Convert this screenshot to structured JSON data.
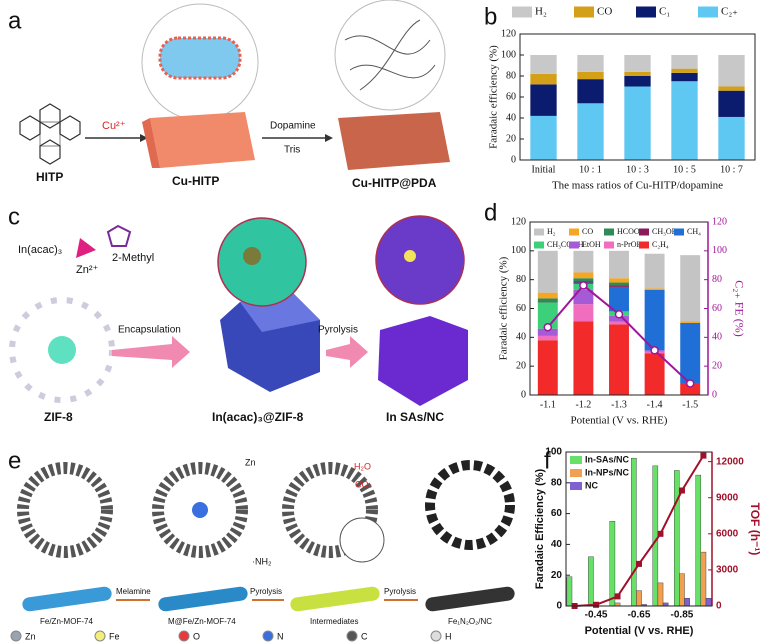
{
  "panel_labels": [
    "a",
    "b",
    "c",
    "d",
    "e",
    "f"
  ],
  "diagram_a": {
    "hitp": "HITP",
    "cu_ion": "Cu²⁺",
    "cu_hitp": "Cu-HITP",
    "dopamine": "Dopamine",
    "tris": "Tris",
    "cu_hitp_pda": "Cu-HITP@PDA"
  },
  "diagram_c": {
    "in_acac": "In(acac)₃",
    "zn_ion": "Zn²⁺",
    "methyl": "2-Methyl",
    "zif8": "ZIF-8",
    "encapsulation": "Encapsulation",
    "pyrolysis": "Pyrolysis",
    "in_zif8": "In(acac)₃@ZIF-8",
    "in_sas": "In SAs/NC"
  },
  "diagram_e": {
    "zn": "Zn",
    "h2o": "H₂O",
    "co2": "COₓ",
    "nh3": "·NH₂",
    "melamine": "Melamine",
    "pyrolysis1": "Pyrolysis",
    "pyrolysis2": "Pyrolysis",
    "mof": "Fe/Zn-MOF-74",
    "m_mof": "M@Fe/Zn-MOF-74",
    "intermediates": "Intermediates",
    "product": "Fe₁N₂O₂/NC",
    "atoms": [
      {
        "label": "Zn",
        "color": "#9aa3b0"
      },
      {
        "label": "Fe",
        "color": "#f3ef7a"
      },
      {
        "label": "O",
        "color": "#e83a3a"
      },
      {
        "label": "N",
        "color": "#3a6fe0"
      },
      {
        "label": "C",
        "color": "#555555"
      },
      {
        "label": "H",
        "color": "#dddddd"
      }
    ]
  },
  "chart_data": [
    {
      "type": "bar",
      "stacked": true,
      "categories": [
        "Initial",
        "10 : 1",
        "10 : 3",
        "10 : 5",
        "10 : 7"
      ],
      "series": [
        {
          "name": "H₂",
          "color": "#c8c8c8",
          "values": [
            18,
            16,
            16,
            13,
            30
          ]
        },
        {
          "name": "CO",
          "color": "#d4a017",
          "values": [
            10,
            7,
            4,
            4,
            4
          ]
        },
        {
          "name": "C₁",
          "color": "#0b1b6e",
          "values": [
            30,
            23,
            10,
            8,
            25
          ]
        },
        {
          "name": "C₂₊",
          "color": "#5ec8f2",
          "values": [
            42,
            54,
            70,
            75,
            41
          ]
        }
      ],
      "ylim": [
        0,
        120
      ],
      "yticks": [
        0,
        20,
        40,
        60,
        80,
        100,
        120
      ],
      "y_label": "Faradaic efficiency (%)",
      "x_label": "The mass ratios of Cu-HITP/dopamine",
      "legend": "top"
    },
    {
      "type": "bar",
      "stacked": true,
      "categories": [
        "-1.1",
        "-1.2",
        "-1.3",
        "-1.4",
        "-1.5"
      ],
      "series": [
        {
          "name": "H₂",
          "color": "#c4c4c4",
          "values": [
            29,
            15,
            19,
            24,
            46
          ]
        },
        {
          "name": "CO",
          "color": "#f5a623",
          "values": [
            4,
            4,
            3,
            1,
            1
          ]
        },
        {
          "name": "HCOOH",
          "color": "#2e8b57",
          "values": [
            3,
            2,
            2,
            0,
            0
          ]
        },
        {
          "name": "CH₃OH",
          "color": "#8b1a5a",
          "values": [
            0,
            1,
            1,
            0,
            0
          ]
        },
        {
          "name": "CH₄",
          "color": "#1f6fd6",
          "values": [
            0,
            1,
            17,
            42,
            42
          ]
        },
        {
          "name": "CH₃COOH",
          "color": "#3cd07a",
          "values": [
            18,
            4,
            3,
            0,
            0
          ]
        },
        {
          "name": "EtOH",
          "color": "#a75ad6",
          "values": [
            5,
            10,
            4,
            1,
            0
          ]
        },
        {
          "name": "n-PrOH",
          "color": "#f06ebd",
          "values": [
            3,
            12,
            2,
            1,
            0
          ]
        },
        {
          "name": "C₂H₄",
          "color": "#f22a2a",
          "values": [
            38,
            51,
            49,
            29,
            8
          ]
        },
        {
          "type": "line",
          "axis": "y2",
          "color": "#a0169a",
          "values": [
            47,
            76,
            56,
            31,
            8
          ]
        }
      ],
      "ylim": [
        0,
        120
      ],
      "yticks": [
        0,
        20,
        40,
        60,
        80,
        100,
        120
      ],
      "y2lim": [
        0,
        120
      ],
      "y2ticks": [
        0,
        20,
        40,
        60,
        80,
        100,
        120
      ],
      "y2color": "#a0169a",
      "y_label": "Faradaic efficiency (%)",
      "y2_label": "C₂₊ FE (%)",
      "x_label": "Potential (V vs. RHE)",
      "legend": "top"
    },
    {
      "type": "bar",
      "stacked": false,
      "x": [
        -0.35,
        -0.45,
        -0.55,
        -0.65,
        -0.75,
        -0.85,
        -0.95
      ],
      "xlim": [
        -0.31,
        -0.99
      ],
      "xticks": [
        -0.45,
        -0.65,
        -0.85
      ],
      "series": [
        {
          "name": "In-SAs/NC",
          "color": "#66e066",
          "values": [
            19,
            32,
            55,
            96,
            91,
            88,
            85
          ]
        },
        {
          "name": "In-NPs/NC",
          "color": "#f0a050",
          "values": [
            0,
            0,
            2,
            10,
            15,
            21,
            35
          ]
        },
        {
          "name": "NC",
          "color": "#8060d0",
          "values": [
            0,
            0,
            0,
            1,
            2,
            5,
            5
          ]
        },
        {
          "type": "line",
          "axis": "y2",
          "color": "#a0102a",
          "values": [
            0,
            100,
            800,
            3500,
            6000,
            9600,
            12500
          ]
        }
      ],
      "ylim": [
        0,
        100
      ],
      "yticks": [
        0,
        20,
        40,
        60,
        80,
        100
      ],
      "y2lim": [
        0,
        12800
      ],
      "y2ticks": [
        0,
        3000,
        6000,
        9000,
        12000
      ],
      "y2color": "#a0102a",
      "y_label": "Faradaic Efficiency (%)",
      "y2_label": "TOF (h⁻¹)",
      "x_label": "Potential (V vs. RHE)",
      "legend": "upper left"
    }
  ]
}
